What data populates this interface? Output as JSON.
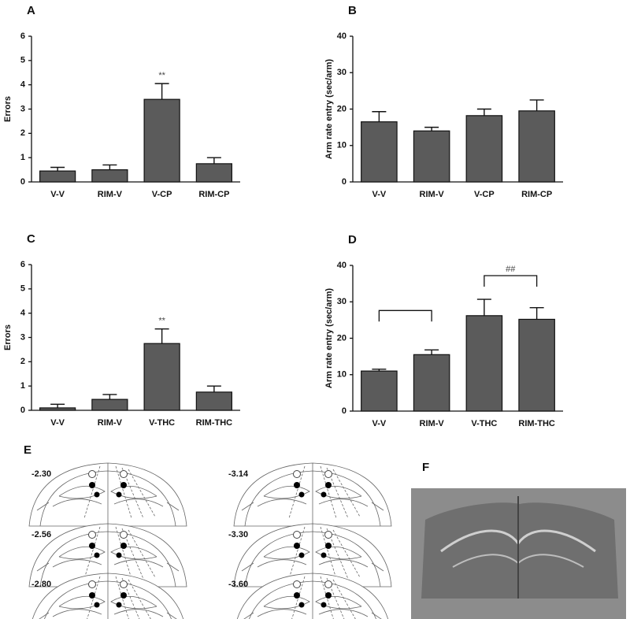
{
  "chart_data": [
    {
      "type": "bar",
      "title": "A",
      "y_label": "Errors",
      "categories": [
        "V-V",
        "RIM-V",
        "V-CP",
        "RIM-CP"
      ],
      "values": [
        0.45,
        0.5,
        3.4,
        0.75
      ],
      "errors": [
        0.15,
        0.2,
        0.65,
        0.25
      ],
      "color": "#5b5b5b",
      "ylim": [
        0,
        6
      ],
      "yticks": [
        0,
        1,
        2,
        3,
        4,
        5,
        6
      ],
      "annotations": [
        {
          "text": "**",
          "categories": [
            "V-CP"
          ]
        }
      ]
    },
    {
      "type": "bar",
      "title": "B",
      "y_label": "Arm rate entry (sec/arm)",
      "categories": [
        "V-V",
        "RIM-V",
        "V-CP",
        "RIM-CP"
      ],
      "values": [
        16.5,
        14,
        18.2,
        19.5
      ],
      "errors": [
        2.8,
        1,
        1.8,
        3
      ],
      "color": "#5b5b5b",
      "ylim": [
        0,
        40
      ],
      "yticks": [
        0,
        10,
        20,
        30,
        40
      ]
    },
    {
      "type": "bar",
      "title": "C",
      "y_label": "Errors",
      "categories": [
        "V-V",
        "RIM-V",
        "V-THC",
        "RIM-THC"
      ],
      "values": [
        0.1,
        0.45,
        2.75,
        0.75
      ],
      "errors": [
        0.15,
        0.2,
        0.6,
        0.25
      ],
      "color": "#5b5b5b",
      "ylim": [
        0,
        6
      ],
      "yticks": [
        0,
        1,
        2,
        3,
        4,
        5,
        6
      ],
      "annotations": [
        {
          "text": "**",
          "categories": [
            "V-THC"
          ]
        }
      ]
    },
    {
      "type": "bar",
      "title": "D",
      "y_label": "Arm rate entry (sec/arm)",
      "categories": [
        "V-V",
        "RIM-V",
        "V-THC",
        "RIM-THC"
      ],
      "values": [
        11,
        15.5,
        26.2,
        25.2
      ],
      "errors": [
        0.5,
        1.3,
        4.5,
        3.2
      ],
      "color": "#5b5b5b",
      "ylim": [
        0,
        40
      ],
      "yticks": [
        0,
        10,
        20,
        30,
        40
      ],
      "annotations": [
        {
          "categories": [
            "V-V",
            "RIM-V"
          ]
        },
        {
          "text": "##",
          "categories": [
            "V-THC",
            "RIM-THC"
          ]
        }
      ]
    }
  ],
  "panel_e": {
    "label": "E",
    "sections": [
      "-2.30",
      "-2.56",
      "-2.80",
      "-3.14",
      "-3.30",
      "-3.60"
    ]
  },
  "panel_f": {
    "label": "F"
  }
}
